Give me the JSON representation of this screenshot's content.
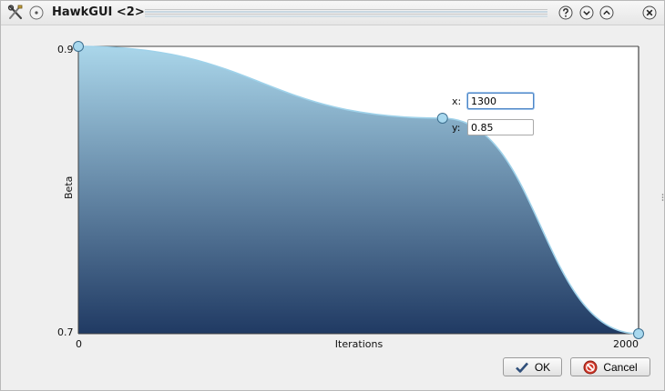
{
  "window": {
    "title": "HawkGUI <2>"
  },
  "plot": {
    "x_label": "Iterations",
    "y_label": "Beta",
    "x_min_label": "0",
    "x_max_label": "2000",
    "y_min_label": "0.7",
    "y_max_label": "0.9"
  },
  "chart_data": {
    "type": "area",
    "xlabel": "Iterations",
    "ylabel": "Beta",
    "xlim": [
      0,
      2000
    ],
    "ylim": [
      0.7,
      0.9
    ],
    "x": [
      0,
      1300,
      2000
    ],
    "y": [
      0.9,
      0.85,
      0.7
    ],
    "grid": false
  },
  "editor": {
    "x_label": "x:",
    "x_value": "1300",
    "y_label": "y:",
    "y_value": "0.85"
  },
  "buttons": {
    "ok_label": "OK",
    "cancel_label": "Cancel"
  },
  "colors": {
    "fill_top": "#aad6ea",
    "fill_bottom": "#203a63",
    "curve": "#9fd2ea",
    "handle": "#a8d8ee"
  },
  "icons": {
    "app": "tools-icon",
    "menu": "circle-menu-icon",
    "help": "help-icon",
    "minimize": "chevron-down-icon",
    "maximize": "chevron-up-icon",
    "close": "close-icon"
  }
}
